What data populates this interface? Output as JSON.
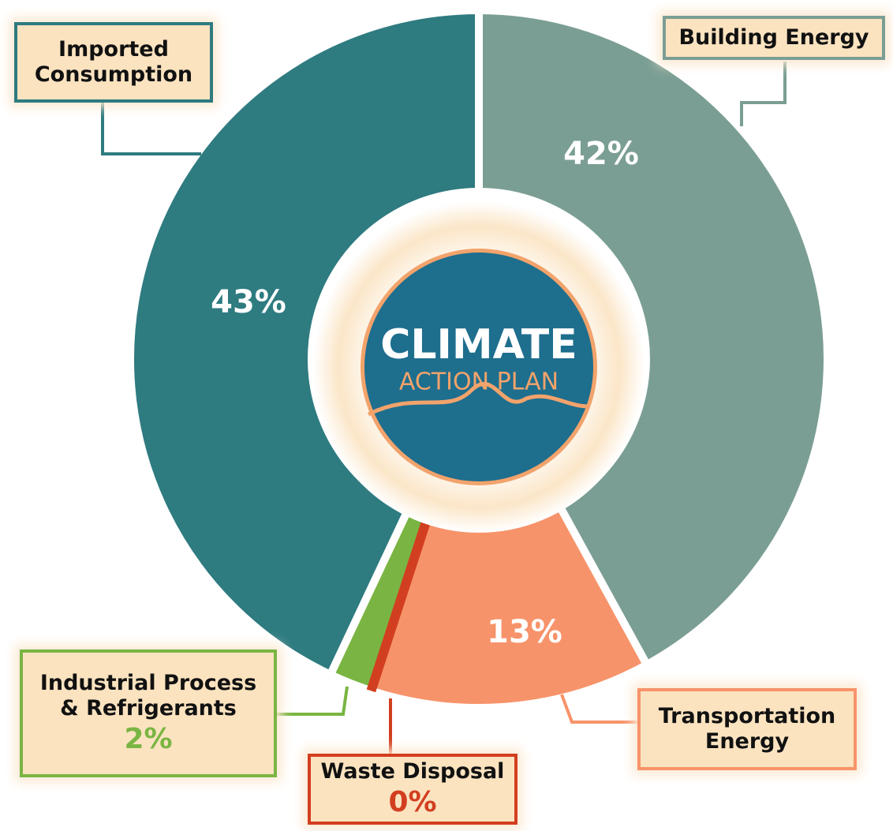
{
  "chart_data": {
    "type": "donut",
    "categories": [
      "Building Energy",
      "Transportation Energy",
      "Waste Disposal",
      "Industrial Process & Refrigerants",
      "Imported Consumption"
    ],
    "values": [
      42,
      13,
      0,
      2,
      43
    ],
    "value_labels": [
      "42%",
      "13%",
      "0%",
      "2%",
      "43%"
    ],
    "colors": [
      "#7b9e94",
      "#f7936a",
      "#d23f20",
      "#7ab543",
      "#2e7b80"
    ],
    "center_logo": {
      "line1": "CLIMATE",
      "line2": "ACTION PLAN"
    }
  }
}
